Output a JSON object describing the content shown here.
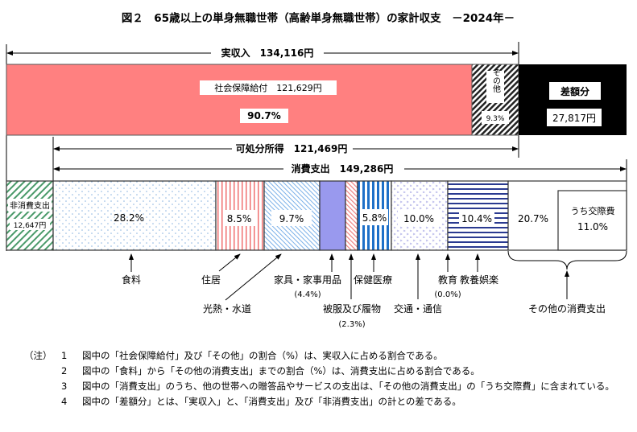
{
  "title": "図２　65歳以上の単身無職世帯（高齢単身無職世帯）の家計収支　－2024年－",
  "income": {
    "label": "実収入　134,116円"
  },
  "disposable": {
    "label": "可処分所得　121,469円"
  },
  "consumption": {
    "label": "消費支出　149,286円"
  },
  "top_bar": {
    "social_security": {
      "label": "社会保障給付　121,629円",
      "pct": "90.7%",
      "color": "#ff8080"
    },
    "other": {
      "label": "その他",
      "pct": "9.3%"
    },
    "deficit": {
      "label": "差額分",
      "value": "27,817円",
      "color": "#000000"
    }
  },
  "bottom_bar": {
    "non_consumption": {
      "label": "非消費支出",
      "value": "12,647円"
    },
    "segments": [
      {
        "name": "食料",
        "pct": "28.2%",
        "value": 28.2
      },
      {
        "name": "住居",
        "pct": "8.5%",
        "value": 8.5
      },
      {
        "name": "光熱・水道",
        "pct": "9.7%",
        "value": 9.7
      },
      {
        "name": "家具・家事用品",
        "pct": "(4.4%)",
        "value": 4.4
      },
      {
        "name": "被服及び履物",
        "pct": "(2.3%)",
        "value": 2.3
      },
      {
        "name": "保健医療",
        "pct": "5.8%",
        "value": 5.8
      },
      {
        "name": "交通・通信",
        "pct": "10.0%",
        "value": 10.0
      },
      {
        "name": "教育",
        "pct": "(0.0%)",
        "value": 0.0
      },
      {
        "name": "教養娯楽",
        "pct": "10.4%",
        "value": 10.4
      },
      {
        "name": "その他の消費支出",
        "pct": "20.7%",
        "value": 20.7
      }
    ],
    "social_expense": {
      "label": "うち交際費",
      "pct": "11.0%"
    }
  },
  "notes": {
    "label": "（注）",
    "items": [
      {
        "num": "1",
        "text": "図中の「社会保障給付」及び「その他」の割合（%）は、実収入に占める割合である。"
      },
      {
        "num": "2",
        "text": "図中の「食料」から「その他の消費支出」までの割合（%）は、消費支出に占める割合である。"
      },
      {
        "num": "3",
        "text": "図中の「消費支出」のうち、他の世帯への贈答品やサービスの支出は、「その他の消費支出」の「うち交際費」に含まれている。"
      },
      {
        "num": "4",
        "text": "図中の「差額分」とは、「実収入」と、「消費支出」及び「非消費支出」の計との差である。"
      }
    ]
  }
}
